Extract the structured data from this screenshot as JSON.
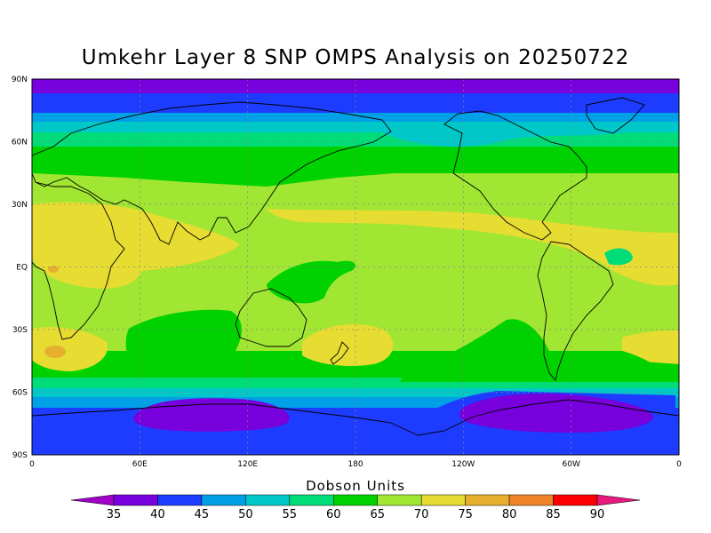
{
  "title": "Umkehr Layer 8 SNP OMPS Analysis on 20250722",
  "lat_labels": [
    "90N",
    "60N",
    "30N",
    "EQ",
    "30S",
    "60S",
    "90S"
  ],
  "lon_labels": [
    "0",
    "60E",
    "120E",
    "180",
    "120W",
    "60W",
    "0"
  ],
  "colorbar": {
    "units_label": "Dobson Units",
    "levels": [
      "35",
      "40",
      "45",
      "50",
      "55",
      "60",
      "65",
      "70",
      "75",
      "80",
      "85",
      "90"
    ],
    "colors": [
      "#a000c8",
      "#7800dc",
      "#1e3cff",
      "#00a0e6",
      "#00c8c8",
      "#00dc78",
      "#00d200",
      "#a0e632",
      "#e6dc32",
      "#e6af2d",
      "#f08228",
      "#fa0000",
      "#e6197d"
    ]
  },
  "colors": {
    "continents": "#000000",
    "grid": "#888888"
  }
}
